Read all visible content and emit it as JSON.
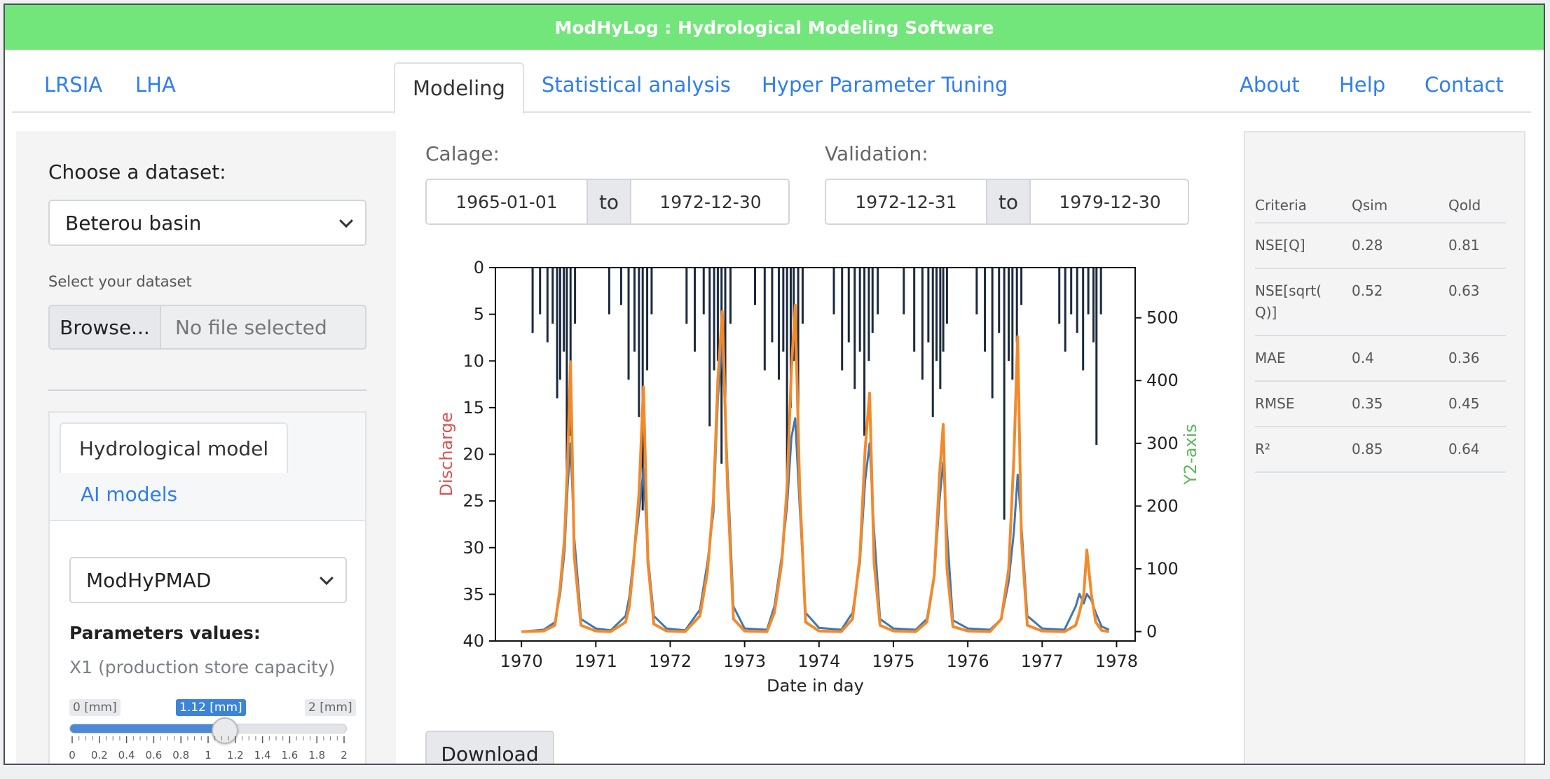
{
  "banner": {
    "title": "ModHyLog : Hydrological Modeling Software"
  },
  "nav": {
    "left": [
      "LRSIA",
      "LHA"
    ],
    "tabs": [
      "Modeling",
      "Statistical analysis",
      "Hyper Parameter Tuning"
    ],
    "active_tab": "Modeling",
    "right": [
      "About",
      "Help",
      "Contact"
    ]
  },
  "sidebar": {
    "dataset_label": "Choose a dataset:",
    "dataset_value": "Beterou basin",
    "upload_label": "Select your dataset",
    "browse_label": "Browse...",
    "file_placeholder": "No file selected",
    "model_tabs": [
      "Hydrological model",
      "AI models"
    ],
    "active_model_tab": "Hydrological model",
    "model_value": "ModHyPMAD",
    "params_title": "Parameters values:",
    "param": {
      "label": "X1 (production store capacity)",
      "min_label": "0 [mm]",
      "max_label": "2 [mm]",
      "value_label": "1.12 [mm]",
      "value": 1.12,
      "min": 0,
      "max": 2,
      "ticks": [
        "0",
        "0.2",
        "0.4",
        "0.6",
        "0.8",
        "1",
        "1.2",
        "1.4",
        "1.6",
        "1.8",
        "2"
      ]
    }
  },
  "periods": {
    "calage_label": "Calage:",
    "calage_from": "1965-01-01",
    "calage_to": "1972-12-30",
    "validation_label": "Validation:",
    "validation_from": "1972-12-31",
    "validation_to": "1979-12-30",
    "to_label": "to"
  },
  "download_label": "Download",
  "chart_data": {
    "type": "line",
    "xlabel": "Date in day",
    "ylabel": "Discharge",
    "y2label": "Y2-axis",
    "x_ticks": [
      "1970",
      "1971",
      "1972",
      "1973",
      "1974",
      "1975",
      "1976",
      "1977",
      "1978"
    ],
    "ylim": [
      40,
      0
    ],
    "y_ticks": [
      0,
      5,
      10,
      15,
      20,
      25,
      30,
      35,
      40
    ],
    "y2lim": [
      -15,
      580
    ],
    "y2_ticks": [
      0,
      100,
      200,
      300,
      400,
      500
    ],
    "xlim": [
      1969.65,
      1978.25
    ],
    "colors": {
      "rain": "#1b2a3f",
      "observed": "#3b78b8",
      "simulated": "#f28a2c",
      "ylabel": "#d9534f",
      "y2label": "#5cb85c"
    },
    "series": [
      {
        "role": "rain",
        "x": [
          1970.15,
          1970.25,
          1970.35,
          1970.42,
          1970.48,
          1970.52,
          1970.57,
          1970.61,
          1970.66,
          1970.72,
          1971.18,
          1971.34,
          1971.44,
          1971.52,
          1971.58,
          1971.63,
          1971.69,
          1971.75,
          1972.22,
          1972.33,
          1972.45,
          1972.53,
          1972.59,
          1972.64,
          1972.69,
          1972.74,
          1972.81,
          1973.14,
          1973.27,
          1973.37,
          1973.46,
          1973.52,
          1973.57,
          1973.62,
          1973.66,
          1973.72,
          1973.78,
          1974.2,
          1974.31,
          1974.4,
          1974.48,
          1974.55,
          1974.61,
          1974.67,
          1974.72,
          1974.79,
          1975.14,
          1975.28,
          1975.39,
          1975.47,
          1975.53,
          1975.58,
          1975.63,
          1975.67,
          1975.72,
          1976.12,
          1976.23,
          1976.33,
          1976.42,
          1976.49,
          1976.55,
          1976.6,
          1976.66,
          1976.72,
          1977.23,
          1977.31,
          1977.39,
          1977.47,
          1977.55,
          1977.62,
          1977.69,
          1977.73,
          1977.79
        ],
        "values": [
          7,
          5,
          8,
          6,
          14,
          12,
          9,
          22,
          18,
          6,
          5,
          4,
          12,
          9,
          16,
          26,
          11,
          5,
          6,
          9,
          5,
          17,
          11,
          10,
          21,
          14,
          6,
          4,
          11,
          8,
          12,
          9,
          24,
          15,
          10,
          17,
          6,
          5,
          11,
          8,
          13,
          9,
          18,
          10,
          7,
          5,
          5,
          9,
          12,
          8,
          16,
          10,
          13,
          9,
          6,
          5,
          9,
          14,
          7,
          27,
          10,
          12,
          8,
          4,
          6,
          9,
          5,
          7,
          11,
          5,
          8,
          19,
          5
        ]
      },
      {
        "role": "observed",
        "x": [
          1970.0,
          1970.3,
          1970.45,
          1970.52,
          1970.58,
          1970.62,
          1970.66,
          1970.71,
          1970.8,
          1971.0,
          1971.2,
          1971.4,
          1971.45,
          1971.5,
          1971.58,
          1971.64,
          1971.7,
          1971.78,
          1971.95,
          1972.2,
          1972.4,
          1972.5,
          1972.58,
          1972.64,
          1972.7,
          1972.77,
          1972.85,
          1973.0,
          1973.3,
          1973.4,
          1973.5,
          1973.57,
          1973.63,
          1973.68,
          1973.74,
          1973.82,
          1974.0,
          1974.3,
          1974.45,
          1974.55,
          1974.62,
          1974.68,
          1974.74,
          1974.82,
          1975.0,
          1975.3,
          1975.45,
          1975.55,
          1975.62,
          1975.67,
          1975.72,
          1975.8,
          1976.0,
          1976.3,
          1976.45,
          1976.55,
          1976.62,
          1976.67,
          1976.72,
          1976.8,
          1977.0,
          1977.3,
          1977.45,
          1977.5,
          1977.56,
          1977.6,
          1977.66,
          1977.72,
          1977.8,
          1977.9
        ],
        "values": [
          0,
          3,
          15,
          60,
          130,
          230,
          300,
          150,
          20,
          5,
          2,
          25,
          55,
          110,
          190,
          260,
          120,
          25,
          5,
          2,
          35,
          110,
          190,
          370,
          460,
          260,
          40,
          5,
          3,
          40,
          120,
          200,
          310,
          340,
          200,
          30,
          6,
          3,
          30,
          110,
          240,
          300,
          160,
          20,
          5,
          3,
          20,
          90,
          210,
          270,
          160,
          18,
          5,
          3,
          20,
          80,
          160,
          250,
          170,
          25,
          5,
          3,
          40,
          60,
          45,
          60,
          50,
          30,
          8,
          3
        ]
      },
      {
        "role": "simulated",
        "x": [
          1970.0,
          1970.3,
          1970.45,
          1970.52,
          1970.58,
          1970.62,
          1970.66,
          1970.71,
          1970.8,
          1971.0,
          1971.2,
          1971.4,
          1971.45,
          1971.5,
          1971.58,
          1971.64,
          1971.7,
          1971.78,
          1971.95,
          1972.2,
          1972.4,
          1972.5,
          1972.58,
          1972.64,
          1972.7,
          1972.77,
          1972.85,
          1973.0,
          1973.3,
          1973.4,
          1973.5,
          1973.57,
          1973.63,
          1973.68,
          1973.74,
          1973.82,
          1974.0,
          1974.3,
          1974.45,
          1974.55,
          1974.62,
          1974.68,
          1974.74,
          1974.82,
          1975.0,
          1975.3,
          1975.45,
          1975.55,
          1975.62,
          1975.67,
          1975.72,
          1975.8,
          1976.0,
          1976.3,
          1976.45,
          1976.55,
          1976.62,
          1976.67,
          1976.72,
          1976.8,
          1977.0,
          1977.3,
          1977.45,
          1977.5,
          1977.56,
          1977.6,
          1977.66,
          1977.72,
          1977.8,
          1977.9
        ],
        "values": [
          0,
          1,
          10,
          70,
          150,
          270,
          430,
          120,
          10,
          1,
          0,
          15,
          40,
          100,
          220,
          390,
          110,
          12,
          1,
          0,
          25,
          95,
          210,
          400,
          510,
          230,
          20,
          1,
          0,
          30,
          110,
          230,
          420,
          520,
          230,
          15,
          1,
          0,
          20,
          120,
          290,
          380,
          110,
          10,
          1,
          0,
          15,
          90,
          250,
          330,
          100,
          8,
          1,
          0,
          20,
          100,
          280,
          470,
          150,
          10,
          1,
          0,
          10,
          30,
          60,
          130,
          60,
          15,
          2,
          0
        ]
      }
    ]
  },
  "metrics": {
    "headers": [
      "Criteria",
      "Qsim",
      "Qold"
    ],
    "rows": [
      [
        "NSE[Q]",
        "0.28",
        "0.81"
      ],
      [
        "NSE[sqrt(\nQ)]",
        "0.52",
        "0.63"
      ],
      [
        "MAE",
        "0.4",
        "0.36"
      ],
      [
        "RMSE",
        "0.35",
        "0.45"
      ],
      [
        "R²",
        "0.85",
        "0.64"
      ]
    ]
  }
}
